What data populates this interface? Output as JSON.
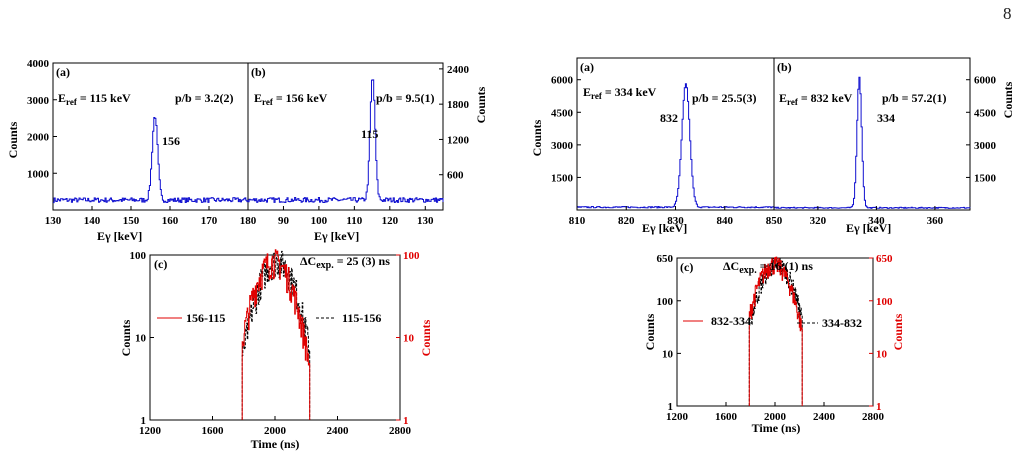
{
  "page_number": "8",
  "figure_left": {
    "top": {
      "x_label": "Eγ [keV]",
      "y_label_left": "Counts",
      "y_label_right": "Counts",
      "panel_a": {
        "tag": "(a)",
        "eref": "E",
        "eref_sub": "ref",
        "eref_value": " = 115 keV",
        "pb": "p/b = 3.2(2)",
        "peak_label": "156",
        "x_ticks": [
          "130",
          "140",
          "150",
          "160",
          "170",
          "180"
        ],
        "x_range": [
          130,
          180
        ],
        "y_ticks": [
          "1000",
          "2000",
          "3000",
          "4000"
        ],
        "y_range": [
          0,
          4000
        ],
        "peak": {
          "center": 156,
          "height": 2300,
          "width": 0.7,
          "baseline": 270
        }
      },
      "panel_b": {
        "tag": "(b)",
        "eref": "E",
        "eref_sub": "ref",
        "eref_value": " = 156 keV",
        "pb": "p/b = 9.5(1)",
        "peak_label": "115",
        "x_ticks": [
          "90",
          "100",
          "110",
          "120",
          "130"
        ],
        "x_range": [
          80,
          135
        ],
        "y_ticks": [
          "600",
          "1200",
          "1800",
          "2400"
        ],
        "y_range": [
          0,
          2500
        ],
        "peak": {
          "center": 115,
          "height": 2080,
          "width": 0.7,
          "baseline": 170
        }
      }
    },
    "bottom": {
      "tag": "(c)",
      "title": "ΔC",
      "title_sub": "exp.",
      "title_value": " = 25 (3) ns",
      "x_label": "Time (ns)",
      "y_label_left": "Counts",
      "y_label_right": "Counts",
      "x_ticks": [
        "1200",
        "1600",
        "2000",
        "2400",
        "2800"
      ],
      "x_range": [
        1200,
        2800
      ],
      "y_ticks_left": [
        "1",
        "10",
        "100"
      ],
      "y_ticks_right": [
        "1",
        "10",
        "100"
      ],
      "y_log_range": [
        1,
        100
      ],
      "legend_red": "156-115",
      "legend_black": "115-156",
      "center": 2000,
      "peak_counts": 85,
      "colors": {
        "red": "#e00000",
        "black": "#000000"
      }
    }
  },
  "figure_right": {
    "top": {
      "x_label": "Eγ [keV]",
      "y_label_left": "Counts",
      "y_label_right": "Counts",
      "panel_a": {
        "tag": "(a)",
        "eref": "E",
        "eref_sub": "ref",
        "eref_value": " = 334 keV",
        "pb": "p/b = 25.5(3)",
        "peak_label": "832",
        "x_ticks": [
          "810",
          "820",
          "830",
          "840",
          "850"
        ],
        "x_range": [
          810,
          850
        ],
        "y_ticks": [
          "1500",
          "3000",
          "4500",
          "6000"
        ],
        "y_range": [
          0,
          7000
        ],
        "peak": {
          "center": 832,
          "height": 5700,
          "width": 0.8,
          "baseline": 130
        }
      },
      "panel_b": {
        "tag": "(b)",
        "eref": "E",
        "eref_sub": "ref",
        "eref_value": " = 832 keV",
        "pb": "p/b = 57.2(1)",
        "peak_label": "334",
        "x_ticks": [
          "320",
          "340",
          "360"
        ],
        "x_range": [
          305,
          372
        ],
        "y_ticks": [
          "1500",
          "3000",
          "4500",
          "6000"
        ],
        "y_range": [
          0,
          7000
        ],
        "peak": {
          "center": 334,
          "height": 6000,
          "width": 0.8,
          "baseline": 100
        }
      }
    },
    "bottom": {
      "tag": "(c)",
      "title": "ΔC",
      "title_sub": "exp.",
      "title_value": " = 16 (1) ns",
      "x_label": "Time (ns)",
      "y_label_left": "Counts",
      "y_label_right": "Counts",
      "x_ticks": [
        "1200",
        "1600",
        "2000",
        "2400",
        "2800"
      ],
      "x_range": [
        1200,
        2800
      ],
      "y_ticks_left": [
        "1",
        "10",
        "100",
        "650"
      ],
      "y_ticks_right": [
        "1",
        "10",
        "100",
        "650"
      ],
      "y_log_range": [
        1,
        650
      ],
      "legend_red": "832-334",
      "legend_black": "334-832",
      "center": 2000,
      "peak_counts": 500,
      "colors": {
        "red": "#e00000",
        "black": "#000000"
      }
    }
  },
  "colors": {
    "spectrum": "#1010d0",
    "axis": "#000000"
  }
}
